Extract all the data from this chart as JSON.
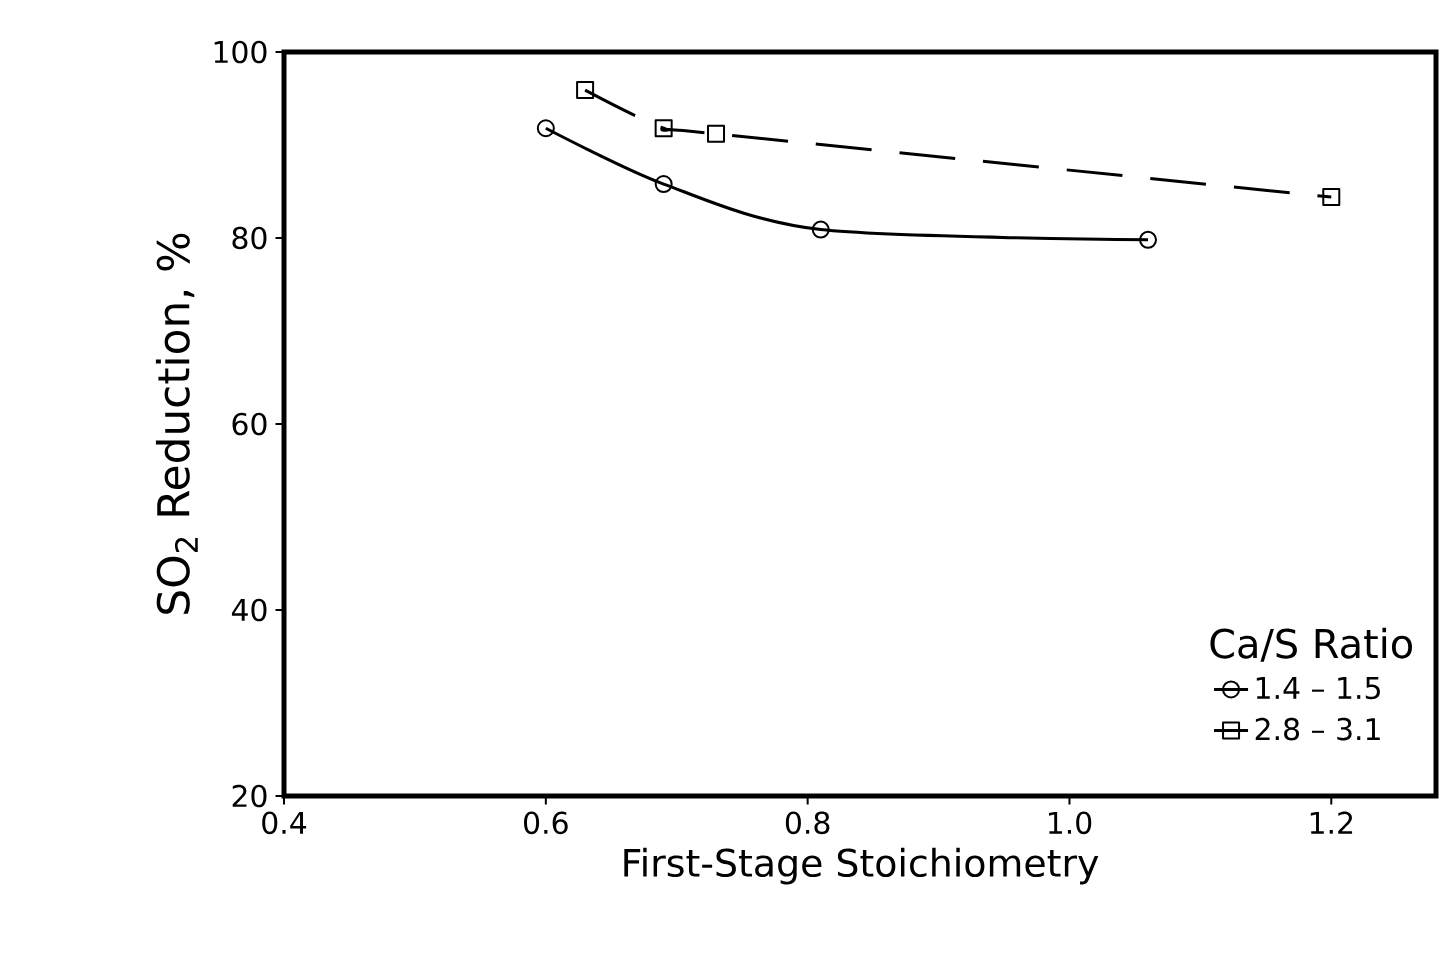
{
  "chart_data": {
    "type": "line",
    "xlabel": "First-Stage Stoichiometry",
    "ylabel": "SO$_{2}$ Reduction, %",
    "legend_title": "Ca/S Ratio",
    "xlim": [
      0.4,
      1.28
    ],
    "xticks": [
      {
        "value": 0.4,
        "label": "0.4"
      },
      {
        "value": 0.6,
        "label": "0.6"
      },
      {
        "value": 0.8,
        "label": "0.8"
      },
      {
        "value": 1.0,
        "label": "1.0"
      },
      {
        "value": 1.2,
        "label": "1.2"
      }
    ],
    "ylim": [
      20,
      100
    ],
    "yticks": [
      20,
      40,
      60,
      80,
      100
    ],
    "grid": false,
    "legend": "bottom right",
    "series": [
      {
        "name": "1.4 – 1.5",
        "color": "#000000",
        "marker": "circle",
        "line_style": "solid",
        "x": [
          0.6,
          0.69,
          0.81,
          1.06
        ],
        "values": [
          91.8,
          85.8,
          80.9,
          79.8
        ]
      },
      {
        "name": "2.8 – 3.1",
        "color": "#000000",
        "marker": "square",
        "line_style": "dashed",
        "x": [
          0.63,
          0.69,
          0.73,
          1.2
        ],
        "values": [
          95.9,
          91.8,
          91.2,
          84.4
        ]
      }
    ]
  }
}
